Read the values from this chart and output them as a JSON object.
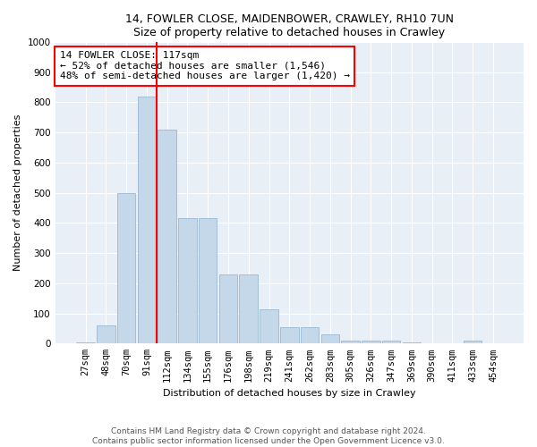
{
  "title1": "14, FOWLER CLOSE, MAIDENBOWER, CRAWLEY, RH10 7UN",
  "title2": "Size of property relative to detached houses in Crawley",
  "xlabel": "Distribution of detached houses by size in Crawley",
  "ylabel": "Number of detached properties",
  "bar_color": "#c5d8ea",
  "bar_edge_color": "#9ab8d0",
  "categories": [
    "27sqm",
    "48sqm",
    "70sqm",
    "91sqm",
    "112sqm",
    "134sqm",
    "155sqm",
    "176sqm",
    "198sqm",
    "219sqm",
    "241sqm",
    "262sqm",
    "283sqm",
    "305sqm",
    "326sqm",
    "347sqm",
    "369sqm",
    "390sqm",
    "411sqm",
    "433sqm",
    "454sqm"
  ],
  "values": [
    5,
    60,
    500,
    820,
    710,
    415,
    415,
    230,
    230,
    115,
    55,
    55,
    30,
    10,
    10,
    10,
    5,
    0,
    0,
    10,
    0
  ],
  "property_line_idx": 4,
  "property_line_color": "red",
  "annotation_line1": "14 FOWLER CLOSE: 117sqm",
  "annotation_line2": "← 52% of detached houses are smaller (1,546)",
  "annotation_line3": "48% of semi-detached houses are larger (1,420) →",
  "annotation_box_color": "white",
  "annotation_box_edge_color": "red",
  "ylim": [
    0,
    1000
  ],
  "yticks": [
    0,
    100,
    200,
    300,
    400,
    500,
    600,
    700,
    800,
    900,
    1000
  ],
  "footer1": "Contains HM Land Registry data © Crown copyright and database right 2024.",
  "footer2": "Contains public sector information licensed under the Open Government Licence v3.0.",
  "background_color": "#ffffff",
  "plot_bg_color": "#e8eff6",
  "grid_color": "#ffffff",
  "title_fontsize": 9,
  "axis_label_fontsize": 8,
  "tick_fontsize": 7.5
}
